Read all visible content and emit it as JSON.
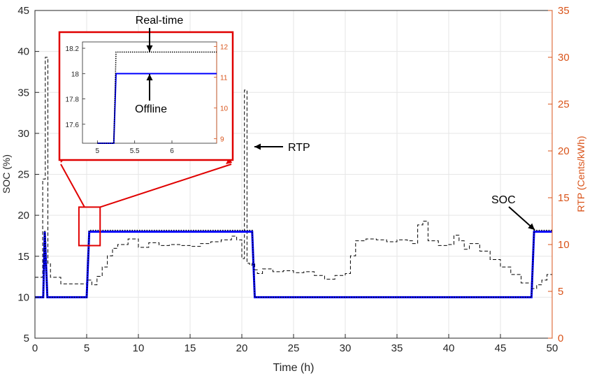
{
  "chart_data": {
    "type": "line",
    "xlabel": "Time (h)",
    "ylabel": "SOC (%)",
    "ylabel_right": "RTP (Cents/kWh)",
    "xlim": [
      0,
      50
    ],
    "ylim": [
      5,
      45
    ],
    "ylim_right": [
      0,
      35
    ],
    "xticks": [
      0,
      5,
      10,
      15,
      20,
      25,
      30,
      35,
      40,
      45,
      50
    ],
    "yticks": [
      5,
      10,
      15,
      20,
      25,
      30,
      35,
      40,
      45
    ],
    "yticks_right": [
      0,
      5,
      10,
      15,
      20,
      25,
      30,
      35
    ],
    "grid": true,
    "colors": {
      "offline": "#0000FF",
      "realtime": "#000000",
      "rtp": "#000000",
      "right_axis": "#D95319",
      "zoom_box": "#E00000"
    },
    "series": [
      {
        "style": "solid-blue-thick",
        "axis": "left",
        "x": [
          0,
          0.8,
          0.95,
          1.2,
          5.0,
          5.25,
          21.0,
          21.25,
          48.0,
          48.25,
          50
        ],
        "y": [
          10,
          10,
          18,
          10,
          10,
          18,
          18,
          10,
          10,
          18,
          18
        ]
      },
      {
        "style": "dotted-black",
        "axis": "left",
        "x": [
          0,
          0.8,
          0.95,
          1.2,
          5.0,
          5.25,
          21.0,
          21.25,
          48.0,
          48.25,
          50
        ],
        "y": [
          10,
          10,
          18.17,
          10,
          10,
          18.17,
          18.17,
          10,
          10,
          18.17,
          18.17
        ]
      },
      {
        "name": "RTP",
        "style": "dashed-black",
        "axis": "right",
        "x": [
          0,
          0.75,
          1.0,
          1.25,
          1.5,
          2.5,
          5.0,
          5.5,
          6,
          6.5,
          7,
          7.5,
          8,
          9,
          10,
          11,
          12,
          13,
          14,
          15,
          16,
          17,
          18,
          19,
          19.5,
          20,
          20.25,
          20.5,
          20.75,
          21,
          21.25,
          21.5,
          22,
          23,
          24,
          25,
          26,
          27,
          28,
          29,
          30,
          30.5,
          31,
          32,
          33,
          34,
          35,
          36,
          36.5,
          37,
          37.5,
          38,
          39,
          40,
          40.5,
          41,
          41.5,
          42,
          43,
          44,
          45,
          46,
          47,
          48,
          48.5,
          49,
          49.5,
          50
        ],
        "y": [
          6.5,
          17,
          30,
          8,
          6.5,
          5.8,
          6.2,
          5.7,
          6.6,
          7.6,
          8.8,
          9.6,
          10,
          10.6,
          9.7,
          10.2,
          9.9,
          10.0,
          9.9,
          9.8,
          10.1,
          10.3,
          10.5,
          10.9,
          10.5,
          8.5,
          26.5,
          8.0,
          7.8,
          8.0,
          7.3,
          6.9,
          7.4,
          7.1,
          7.2,
          7.0,
          7.1,
          6.7,
          6.3,
          6.7,
          6.9,
          8.8,
          10.4,
          10.6,
          10.5,
          10.3,
          10.5,
          10.4,
          10.1,
          12.1,
          12.5,
          10.4,
          9.9,
          10.0,
          11.0,
          10.4,
          9.5,
          10.1,
          9.3,
          8.4,
          7.6,
          6.8,
          5.9,
          5.3,
          5.7,
          6.2,
          6.8,
          6.3
        ]
      }
    ],
    "inset": {
      "xlim": [
        4.8,
        6.6
      ],
      "ylim": [
        17.45,
        18.25
      ],
      "ylim_right": [
        8.85,
        12.15
      ],
      "xticks": [
        5,
        5.5,
        6
      ],
      "yticks": [
        17.6,
        17.8,
        18,
        18.2
      ],
      "yticks_right": [
        9,
        10,
        11,
        12
      ],
      "offline_x": [
        5.0,
        5.22,
        5.25,
        6.6
      ],
      "offline_y": [
        10,
        10,
        18,
        18
      ],
      "realtime_x": [
        5.0,
        5.22,
        5.25,
        6.6
      ],
      "realtime_y": [
        10,
        10,
        18.17,
        18.17
      ]
    },
    "annotations": [
      "Real-time",
      "Offline",
      "RTP",
      "SOC"
    ]
  }
}
